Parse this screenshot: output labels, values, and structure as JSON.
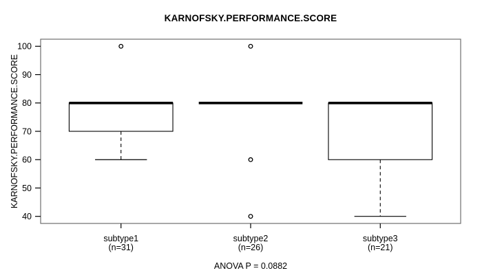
{
  "chart_data": {
    "type": "boxplot",
    "title": "KARNOFSKY.PERFORMANCE.SCORE",
    "ylabel": "KARNOFSKY.PERFORMANCE.SCORE",
    "xlabel": "",
    "annotation": "ANOVA P = 0.0882",
    "ylim": [
      37.5,
      102.5
    ],
    "y_ticks": [
      40,
      50,
      60,
      70,
      80,
      90,
      100
    ],
    "grid": false,
    "legend": "none",
    "groups": [
      {
        "label": "subtype1",
        "n_label": "(n=31)",
        "n": 31,
        "q1": 70,
        "median": 80,
        "q3": 80,
        "whisker_low": 60,
        "whisker_high": 80,
        "outliers": [
          100
        ]
      },
      {
        "label": "subtype2",
        "n_label": "(n=26)",
        "n": 26,
        "q1": 80,
        "median": 80,
        "q3": 80,
        "whisker_low": 80,
        "whisker_high": 80,
        "outliers": [
          100,
          60,
          40
        ]
      },
      {
        "label": "subtype3",
        "n_label": "(n=21)",
        "n": 21,
        "q1": 60,
        "median": 80,
        "q3": 80,
        "whisker_low": 40,
        "whisker_high": 80,
        "outliers": []
      }
    ],
    "colors": {
      "line": "#000000",
      "frame": "#6f6f6f",
      "background": "#ffffff",
      "box_fill": "#ffffff"
    }
  }
}
